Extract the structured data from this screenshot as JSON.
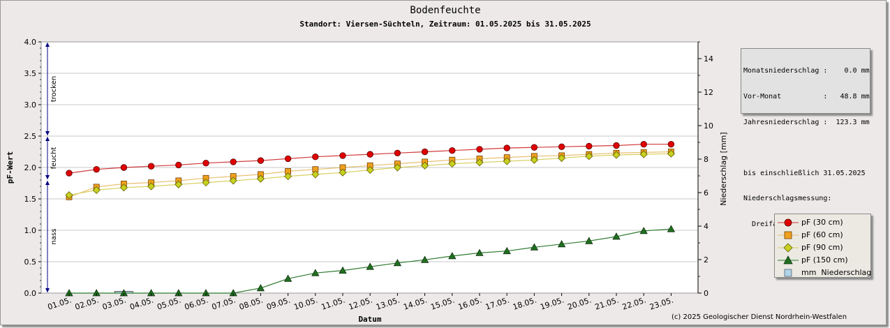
{
  "chart_data": {
    "type": "line",
    "title": "Bodenfeuchte",
    "subtitle": "Standort: Viersen-Süchteln, Zeitraum: 01.05.2025 bis 31.05.2025",
    "xlabel": "Datum",
    "ylabel": "pF-Wert",
    "y2label": "Niederschlag [mm]",
    "ylim": [
      0,
      4
    ],
    "y_ticks": [
      "0.0",
      "0.5",
      "1.0",
      "1.5",
      "2.0",
      "2.5",
      "3.0",
      "3.5",
      "4.0"
    ],
    "y2lim": [
      0,
      15
    ],
    "y2_ticks": [
      "0",
      "2",
      "4",
      "6",
      "8",
      "10",
      "12",
      "14"
    ],
    "grid": true,
    "categories": [
      "01.05.",
      "02.05.",
      "03.05.",
      "04.05.",
      "05.05.",
      "06.05.",
      "07.05.",
      "08.05.",
      "09.05.",
      "10.05.",
      "11.05.",
      "12.05.",
      "13.05.",
      "14.05.",
      "15.05.",
      "16.05.",
      "17.05.",
      "18.05.",
      "19.05.",
      "20.05.",
      "21.05.",
      "22.05.",
      "23.05."
    ],
    "series": [
      {
        "name": "pF (30 cm)",
        "color": "#cc0000",
        "line_color": "#d23a3a",
        "marker": "circle",
        "values": [
          1.91,
          1.97,
          2.0,
          2.02,
          2.04,
          2.07,
          2.09,
          2.11,
          2.14,
          2.17,
          2.19,
          2.21,
          2.23,
          2.25,
          2.27,
          2.29,
          2.31,
          2.32,
          2.33,
          2.34,
          2.35,
          2.37,
          2.37
        ]
      },
      {
        "name": "pF (60 cm)",
        "color": "#f0a020",
        "line_color": "#e8c070",
        "marker": "square",
        "values": [
          1.53,
          1.69,
          1.74,
          1.76,
          1.79,
          1.83,
          1.86,
          1.89,
          1.94,
          1.97,
          2.0,
          2.03,
          2.06,
          2.09,
          2.12,
          2.14,
          2.16,
          2.18,
          2.19,
          2.21,
          2.23,
          2.24,
          2.25
        ]
      },
      {
        "name": "pF (90 cm)",
        "color": "#c8d020",
        "line_color": "#d8d060",
        "marker": "diamond",
        "values": [
          1.56,
          1.64,
          1.68,
          1.7,
          1.73,
          1.76,
          1.79,
          1.82,
          1.86,
          1.89,
          1.92,
          1.96,
          2.0,
          2.03,
          2.06,
          2.08,
          2.1,
          2.12,
          2.15,
          2.18,
          2.2,
          2.21,
          2.22
        ]
      },
      {
        "name": "pF (150 cm)",
        "color": "#207020",
        "line_color": "#2e7a2e",
        "marker": "triangle",
        "values": [
          0.0,
          0.0,
          0.0,
          0.0,
          0.0,
          0.0,
          0.0,
          0.08,
          0.23,
          0.32,
          0.36,
          0.42,
          0.48,
          0.53,
          0.59,
          0.64,
          0.67,
          0.73,
          0.78,
          0.83,
          0.9,
          0.99,
          1.02
        ]
      },
      {
        "name": "mm  Niederschlag",
        "color": "#b0d4e8",
        "type": "bar",
        "axis": "right",
        "values": [
          0.0,
          0.0,
          0.1,
          0.0,
          0.0,
          0.0,
          0.0,
          0.0,
          0.0,
          0.0,
          0.0,
          0.0,
          0.0,
          0.0,
          0.0,
          0.0,
          0.0,
          0.0,
          0.0,
          0.0,
          0.0,
          0.0,
          0.0
        ]
      }
    ],
    "zones": [
      {
        "label": "trocken",
        "from": 2.5,
        "to": 4.0
      },
      {
        "label": "feucht",
        "from": 1.8,
        "to": 2.5
      },
      {
        "label": "nass",
        "from": 0.0,
        "to": 1.8
      }
    ],
    "legend_position": "right"
  },
  "info": {
    "lines": [
      "Monatsniederschlag :    0.0 mm",
      "Vor-Monat          :   48.8 mm",
      "Jahresniederschlag :  123.3 mm",
      "",
      "bis einschließlich 31.05.2025",
      "Niederschlagsmessung:",
      "  Dreifachkippwaage, Mittelung"
    ]
  },
  "copyright": "(c) 2025 Geologischer Dienst Nordrhein-Westfalen"
}
